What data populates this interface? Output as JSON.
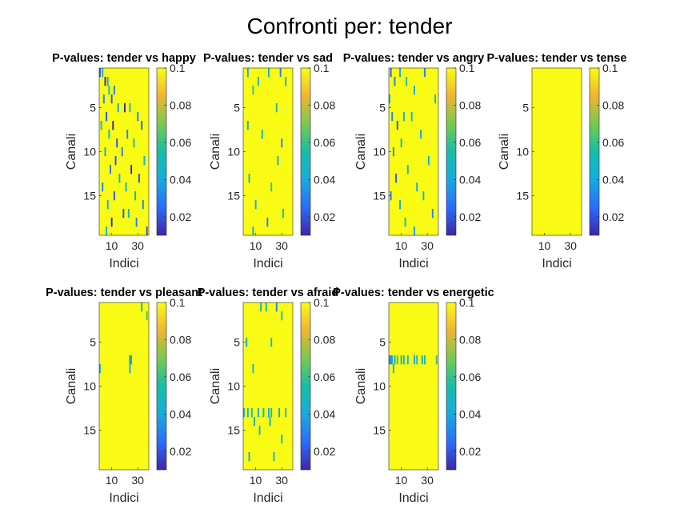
{
  "figure": {
    "title": "Confronti per: tender"
  },
  "colormap": {
    "stops": [
      "#3e26a8",
      "#2c6dfb",
      "#17abe0",
      "#15bfa7",
      "#78c94f",
      "#f0b532",
      "#f9fb15"
    ]
  },
  "chart_data": [
    {
      "type": "heatmap",
      "title": "P-values: tender vs happy",
      "xlabel": "Indici",
      "ylabel": "Canali",
      "x_range": [
        1,
        38
      ],
      "y_range": [
        1,
        19
      ],
      "xticks": [
        "10",
        "30"
      ],
      "yticks": [
        "5",
        "10",
        "15"
      ],
      "colorbar": {
        "ticks": [
          "0.1",
          "0.08",
          "0.06",
          "0.04",
          "0.02"
        ],
        "range": [
          0.01,
          0.1
        ]
      },
      "default_value": 0.1,
      "cells": [
        [
          1,
          1,
          0.02
        ],
        [
          1,
          3,
          0.04
        ],
        [
          2,
          5,
          0.01
        ],
        [
          2,
          7,
          0.04
        ],
        [
          3,
          8,
          0.05
        ],
        [
          3,
          12,
          0.03
        ],
        [
          4,
          4,
          0.03
        ],
        [
          4,
          10,
          0.02
        ],
        [
          5,
          15,
          0.04
        ],
        [
          5,
          20,
          0.01
        ],
        [
          5,
          24,
          0.05
        ],
        [
          6,
          6,
          0.02
        ],
        [
          6,
          30,
          0.03
        ],
        [
          7,
          2,
          0.04
        ],
        [
          7,
          11,
          0.01
        ],
        [
          7,
          33,
          0.02
        ],
        [
          8,
          8,
          0.05
        ],
        [
          8,
          22,
          0.03
        ],
        [
          9,
          14,
          0.02
        ],
        [
          9,
          27,
          0.05
        ],
        [
          10,
          5,
          0.04
        ],
        [
          10,
          18,
          0.03
        ],
        [
          11,
          13,
          0.02
        ],
        [
          11,
          35,
          0.04
        ],
        [
          12,
          9,
          0.03
        ],
        [
          12,
          25,
          0.01
        ],
        [
          13,
          16,
          0.05
        ],
        [
          13,
          31,
          0.02
        ],
        [
          14,
          3,
          0.03
        ],
        [
          14,
          21,
          0.04
        ],
        [
          15,
          12,
          0.02
        ],
        [
          15,
          28,
          0.05
        ],
        [
          16,
          7,
          0.04
        ],
        [
          16,
          34,
          0.03
        ],
        [
          17,
          19,
          0.02
        ],
        [
          17,
          23,
          0.05
        ],
        [
          18,
          10,
          0.01
        ],
        [
          18,
          29,
          0.03
        ],
        [
          19,
          6,
          0.04
        ],
        [
          19,
          37,
          0.02
        ]
      ]
    },
    {
      "type": "heatmap",
      "title": "P-values: tender vs sad",
      "xlabel": "Indici",
      "ylabel": "Canali",
      "x_range": [
        1,
        38
      ],
      "y_range": [
        1,
        19
      ],
      "xticks": [
        "10",
        "30"
      ],
      "yticks": [
        "5",
        "10",
        "15"
      ],
      "colorbar": {
        "ticks": [
          "0.1",
          "0.08",
          "0.06",
          "0.04",
          "0.02"
        ],
        "range": [
          0.01,
          0.1
        ]
      },
      "default_value": 0.1,
      "cells": [
        [
          1,
          4,
          0.04
        ],
        [
          1,
          20,
          0.05
        ],
        [
          1,
          29,
          0.03
        ],
        [
          2,
          12,
          0.05
        ],
        [
          2,
          33,
          0.04
        ],
        [
          3,
          8,
          0.06
        ],
        [
          5,
          26,
          0.05
        ],
        [
          7,
          4,
          0.04
        ],
        [
          8,
          15,
          0.05
        ],
        [
          9,
          30,
          0.03
        ],
        [
          11,
          27,
          0.04
        ],
        [
          13,
          5,
          0.05
        ],
        [
          14,
          22,
          0.06
        ],
        [
          16,
          10,
          0.04
        ],
        [
          17,
          31,
          0.05
        ],
        [
          18,
          19,
          0.03
        ],
        [
          19,
          8,
          0.05
        ]
      ]
    },
    {
      "type": "heatmap",
      "title": "P-values: tender vs angry",
      "xlabel": "Indici",
      "ylabel": "Canali",
      "x_range": [
        1,
        38
      ],
      "y_range": [
        1,
        19
      ],
      "xticks": [
        "10",
        "30"
      ],
      "yticks": [
        "5",
        "10",
        "15"
      ],
      "colorbar": {
        "ticks": [
          "0.1",
          "0.08",
          "0.06",
          "0.04",
          "0.02"
        ],
        "range": [
          0.01,
          0.1
        ]
      },
      "default_value": 0.1,
      "cells": [
        [
          1,
          2,
          0.02
        ],
        [
          1,
          9,
          0.04
        ],
        [
          1,
          28,
          0.03
        ],
        [
          2,
          5,
          0.03
        ],
        [
          2,
          14,
          0.05
        ],
        [
          3,
          20,
          0.04
        ],
        [
          4,
          1,
          0.04
        ],
        [
          4,
          36,
          0.05
        ],
        [
          6,
          3,
          0.03
        ],
        [
          6,
          12,
          0.04
        ],
        [
          6,
          18,
          0.05
        ],
        [
          7,
          7,
          0.02
        ],
        [
          8,
          25,
          0.04
        ],
        [
          9,
          10,
          0.05
        ],
        [
          10,
          4,
          0.03
        ],
        [
          11,
          31,
          0.04
        ],
        [
          12,
          15,
          0.05
        ],
        [
          13,
          6,
          0.02
        ],
        [
          14,
          22,
          0.04
        ],
        [
          15,
          2,
          0.03
        ],
        [
          15,
          27,
          0.05
        ],
        [
          16,
          9,
          0.04
        ],
        [
          17,
          34,
          0.03
        ],
        [
          18,
          13,
          0.05
        ],
        [
          19,
          20,
          0.04
        ]
      ]
    },
    {
      "type": "heatmap",
      "title": "P-values: tender vs tense",
      "xlabel": "Indici",
      "ylabel": "Canali",
      "x_range": [
        1,
        38
      ],
      "y_range": [
        1,
        19
      ],
      "xticks": [
        "10",
        "30"
      ],
      "yticks": [
        "5",
        "10",
        "15"
      ],
      "colorbar": {
        "ticks": [
          "0.1",
          "0.08",
          "0.06",
          "0.04",
          "0.02"
        ],
        "range": [
          0.01,
          0.1
        ]
      },
      "default_value": 0.1,
      "cells": []
    },
    {
      "type": "heatmap",
      "title": "P-values: tender vs pleasant",
      "xlabel": "Indici",
      "ylabel": "Canali",
      "x_range": [
        1,
        38
      ],
      "y_range": [
        1,
        19
      ],
      "xticks": [
        "10",
        "30"
      ],
      "yticks": [
        "5",
        "10",
        "15"
      ],
      "colorbar": {
        "ticks": [
          "0.1",
          "0.08",
          "0.06",
          "0.04",
          "0.02"
        ],
        "range": [
          0.01,
          0.1
        ]
      },
      "default_value": 0.1,
      "cells": [
        [
          1,
          33,
          0.05
        ],
        [
          2,
          37,
          0.06
        ],
        [
          7,
          24,
          0.03
        ],
        [
          7,
          25,
          0.05
        ],
        [
          8,
          24,
          0.04
        ],
        [
          8,
          1,
          0.05
        ]
      ]
    },
    {
      "type": "heatmap",
      "title": "P-values: tender vs afraid",
      "xlabel": "Indici",
      "ylabel": "Canali",
      "x_range": [
        1,
        38
      ],
      "y_range": [
        1,
        19
      ],
      "xticks": [
        "10",
        "30"
      ],
      "yticks": [
        "5",
        "10",
        "15"
      ],
      "colorbar": {
        "ticks": [
          "0.1",
          "0.08",
          "0.06",
          "0.04",
          "0.02"
        ],
        "range": [
          0.01,
          0.1
        ]
      },
      "default_value": 0.1,
      "cells": [
        [
          1,
          14,
          0.04
        ],
        [
          1,
          18,
          0.05
        ],
        [
          1,
          26,
          0.03
        ],
        [
          2,
          30,
          0.05
        ],
        [
          5,
          3,
          0.04
        ],
        [
          5,
          22,
          0.05
        ],
        [
          8,
          8,
          0.05
        ],
        [
          13,
          1,
          0.05
        ],
        [
          13,
          4,
          0.04
        ],
        [
          13,
          7,
          0.05
        ],
        [
          13,
          12,
          0.04
        ],
        [
          13,
          16,
          0.05
        ],
        [
          13,
          20,
          0.04
        ],
        [
          13,
          22,
          0.05
        ],
        [
          13,
          28,
          0.04
        ],
        [
          13,
          33,
          0.05
        ],
        [
          14,
          9,
          0.05
        ],
        [
          14,
          21,
          0.04
        ],
        [
          15,
          13,
          0.05
        ],
        [
          16,
          30,
          0.05
        ],
        [
          18,
          5,
          0.04
        ],
        [
          18,
          24,
          0.05
        ]
      ]
    },
    {
      "type": "heatmap",
      "title": "P-values: tender vs energetic",
      "xlabel": "Indici",
      "ylabel": "Canali",
      "x_range": [
        1,
        38
      ],
      "y_range": [
        1,
        19
      ],
      "xticks": [
        "10",
        "30"
      ],
      "yticks": [
        "5",
        "10",
        "15"
      ],
      "colorbar": {
        "ticks": [
          "0.1",
          "0.08",
          "0.06",
          "0.04",
          "0.02"
        ],
        "range": [
          0.01,
          0.1
        ]
      },
      "default_value": 0.1,
      "cells": [
        [
          7,
          1,
          0.04
        ],
        [
          7,
          2,
          0.03
        ],
        [
          7,
          3,
          0.05
        ],
        [
          7,
          5,
          0.04
        ],
        [
          7,
          7,
          0.06
        ],
        [
          7,
          10,
          0.04
        ],
        [
          7,
          12,
          0.05
        ],
        [
          7,
          15,
          0.05
        ],
        [
          7,
          20,
          0.04
        ],
        [
          7,
          22,
          0.05
        ],
        [
          7,
          26,
          0.04
        ],
        [
          7,
          28,
          0.05
        ],
        [
          7,
          37,
          0.06
        ],
        [
          8,
          4,
          0.05
        ]
      ]
    }
  ]
}
